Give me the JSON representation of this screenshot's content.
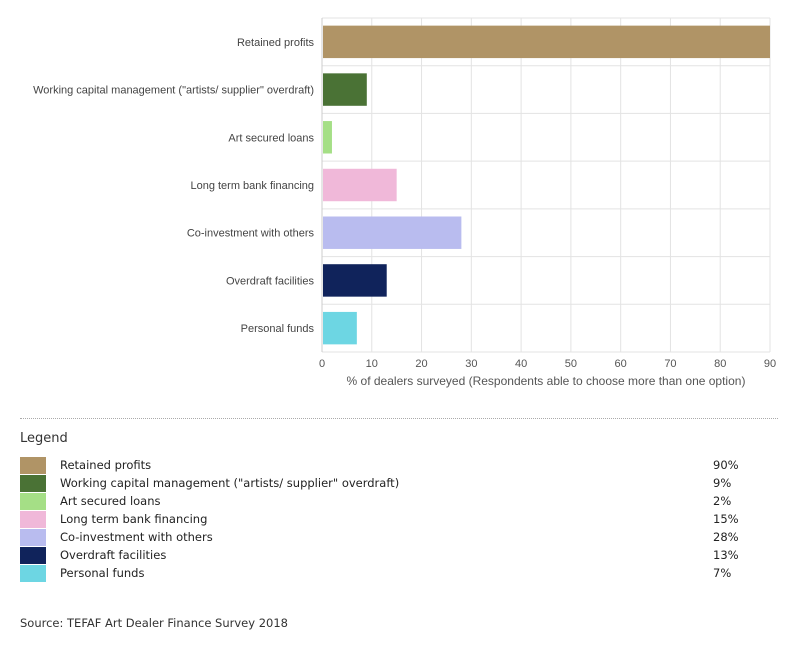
{
  "chart_data": {
    "type": "bar",
    "orientation": "horizontal",
    "categories": [
      "Retained profits",
      "Working capital management (\"artists/ supplier\" overdraft)",
      "Art secured loans",
      "Long term bank financing",
      "Co-investment with others",
      "Overdraft facilities",
      "Personal funds"
    ],
    "values": [
      90,
      9,
      2,
      15,
      28,
      13,
      7
    ],
    "colors": [
      "#b09466",
      "#4a7235",
      "#a5df86",
      "#f0b8d9",
      "#b9bcef",
      "#10235b",
      "#6dd6e3"
    ],
    "xlabel": "% of dealers surveyed (Respondents able to choose more than one option)",
    "ylabel": "",
    "xlim": [
      0,
      90
    ],
    "xticks": [
      0,
      10,
      20,
      30,
      40,
      50,
      60,
      70,
      80,
      90
    ],
    "grid": true
  },
  "legend": {
    "title": "Legend",
    "items": [
      {
        "label": "Retained profits",
        "value": "90%",
        "color": "#b09466"
      },
      {
        "label": "Working capital management (\"artists/ supplier\" overdraft)",
        "value": "9%",
        "color": "#4a7235"
      },
      {
        "label": "Art secured loans",
        "value": "2%",
        "color": "#a5df86"
      },
      {
        "label": "Long term bank financing",
        "value": "15%",
        "color": "#f0b8d9"
      },
      {
        "label": "Co-investment with others",
        "value": "28%",
        "color": "#b9bcef"
      },
      {
        "label": "Overdraft facilities",
        "value": "13%",
        "color": "#10235b"
      },
      {
        "label": "Personal funds",
        "value": "7%",
        "color": "#6dd6e3"
      }
    ]
  },
  "source": "Source: TEFAF Art Dealer Finance Survey 2018"
}
